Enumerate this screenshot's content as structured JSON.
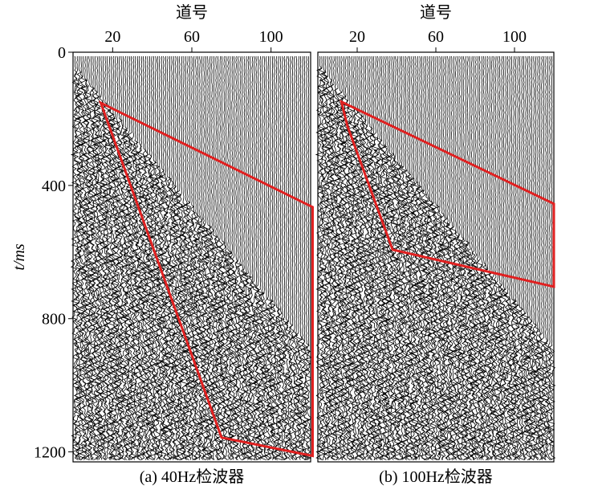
{
  "chart_data": [
    {
      "type": "seismic",
      "title": "道号",
      "caption": "(a) 40Hz检波器",
      "ylabel": "t/ms",
      "xlim": [
        0,
        120
      ],
      "xticks": [
        20,
        60,
        100
      ],
      "ylim": [
        0,
        1230
      ],
      "yticks": [
        0,
        400,
        800,
        1200
      ],
      "region": {
        "color": "#e02020",
        "points": [
          [
            14,
            152
          ],
          [
            121,
            465
          ],
          [
            121,
            1212
          ],
          [
            75,
            1157
          ]
        ]
      }
    },
    {
      "type": "seismic",
      "title": "道号",
      "caption": "(b) 100Hz检波器",
      "xlim": [
        0,
        120
      ],
      "xticks": [
        20,
        60,
        100
      ],
      "ylim": [
        0,
        1230
      ],
      "region": {
        "color": "#e02020",
        "points": [
          [
            12,
            149
          ],
          [
            120,
            455
          ],
          [
            120,
            704
          ],
          [
            38,
            593
          ],
          [
            15,
            221
          ]
        ]
      }
    }
  ]
}
